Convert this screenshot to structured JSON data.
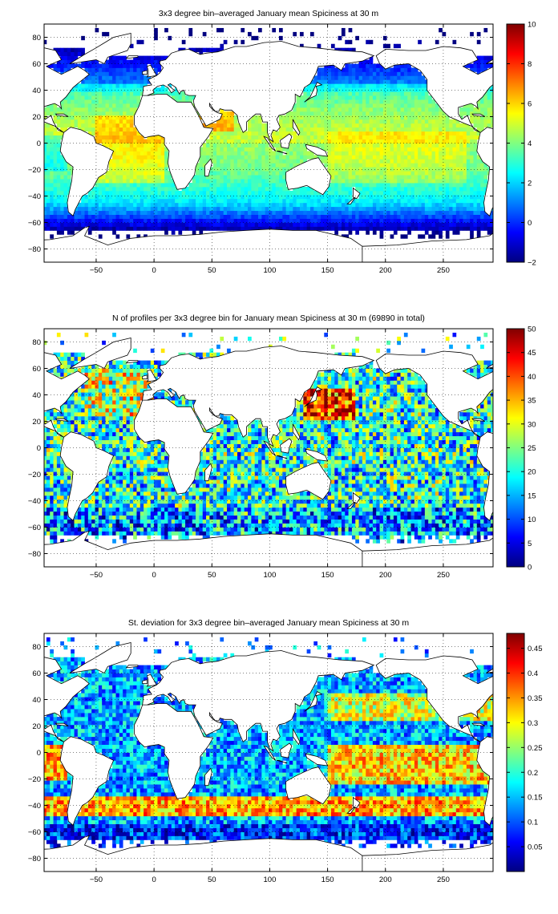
{
  "chart_data": [
    {
      "type": "heatmap",
      "title": "3x3 degree bin–averaged January mean Spiciness at 30 m",
      "xlim": [
        -95,
        293
      ],
      "ylim": [
        -90,
        90
      ],
      "xticks": [
        -50,
        0,
        50,
        100,
        150,
        200,
        250
      ],
      "yticks": [
        -80,
        -60,
        -40,
        -20,
        0,
        20,
        40,
        60,
        80
      ],
      "xtick_labels": [
        "−50",
        "0",
        "50",
        "100",
        "150",
        "200",
        "250"
      ],
      "ytick_labels": [
        "−80",
        "−60",
        "−40",
        "−20",
        "0",
        "20",
        "40",
        "60",
        "80"
      ],
      "grid": true,
      "bin_size_deg": 3,
      "colormap": "jet",
      "colorbar": {
        "min": -2,
        "max": 10,
        "ticks": [
          -2,
          0,
          2,
          4,
          6,
          8,
          10
        ],
        "tick_labels": [
          "−2",
          "0",
          "2",
          "4",
          "6",
          "8",
          "10"
        ]
      },
      "field": "spiciness"
    },
    {
      "type": "heatmap",
      "title": "N of profiles per 3x3 degree bin for January mean Spiciness at 30 m (69890 in total)",
      "xlim": [
        -95,
        293
      ],
      "ylim": [
        -90,
        90
      ],
      "xticks": [
        -50,
        0,
        50,
        100,
        150,
        200,
        250
      ],
      "yticks": [
        -80,
        -60,
        -40,
        -20,
        0,
        20,
        40,
        60,
        80
      ],
      "xtick_labels": [
        "−50",
        "0",
        "50",
        "100",
        "150",
        "200",
        "250"
      ],
      "ytick_labels": [
        "−80",
        "−60",
        "−40",
        "−20",
        "0",
        "20",
        "40",
        "60",
        "80"
      ],
      "grid": true,
      "bin_size_deg": 3,
      "colormap": "jet",
      "colorbar": {
        "min": 0,
        "max": 50,
        "ticks": [
          0,
          5,
          10,
          15,
          20,
          25,
          30,
          35,
          40,
          45,
          50
        ],
        "tick_labels": [
          "0",
          "5",
          "10",
          "15",
          "20",
          "25",
          "30",
          "35",
          "40",
          "45",
          "50"
        ]
      },
      "field": "count"
    },
    {
      "type": "heatmap",
      "title": "St. deviation for 3x3 degree bin–averaged January mean Spiciness at 30 m",
      "xlim": [
        -95,
        293
      ],
      "ylim": [
        -90,
        90
      ],
      "xticks": [
        -50,
        0,
        50,
        100,
        150,
        200,
        250
      ],
      "yticks": [
        -80,
        -60,
        -40,
        -20,
        0,
        20,
        40,
        60,
        80
      ],
      "xtick_labels": [
        "−50",
        "0",
        "50",
        "100",
        "150",
        "200",
        "250"
      ],
      "ytick_labels": [
        "−80",
        "−60",
        "−40",
        "−20",
        "0",
        "20",
        "40",
        "60",
        "80"
      ],
      "grid": true,
      "bin_size_deg": 3,
      "colormap": "jet",
      "colorbar": {
        "min": 0,
        "max": 0.48,
        "ticks": [
          0.05,
          0.1,
          0.15,
          0.2,
          0.25,
          0.3,
          0.35,
          0.4,
          0.45
        ],
        "tick_labels": [
          "0.05",
          "0.1",
          "0.15",
          "0.2",
          "0.25",
          "0.3",
          "0.35",
          "0.4",
          "0.45"
        ]
      },
      "field": "stdev"
    }
  ]
}
